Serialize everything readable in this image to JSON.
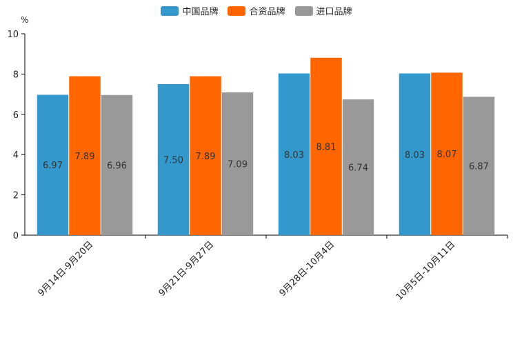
{
  "chart_data": {
    "type": "bar",
    "unit": "%",
    "categories": [
      "9月14日-9月20日",
      "9月21日-9月27日",
      "9月28日-10月4日",
      "10月5日-10月11日"
    ],
    "series": [
      {
        "name": "中国品牌",
        "color": "#3399cc",
        "values": [
          6.97,
          7.5,
          8.03,
          8.03
        ],
        "labels": [
          "6.97",
          "7.50",
          "8.03",
          "8.03"
        ]
      },
      {
        "name": "合资品牌",
        "color": "#ff6600",
        "values": [
          7.89,
          7.89,
          8.81,
          8.07
        ],
        "labels": [
          "7.89",
          "7.89",
          "8.81",
          "8.07"
        ]
      },
      {
        "name": "进口品牌",
        "color": "#999999",
        "values": [
          6.96,
          7.09,
          6.74,
          6.87
        ],
        "labels": [
          "6.96",
          "7.09",
          "6.74",
          "6.87"
        ]
      }
    ],
    "ylim": [
      0,
      10
    ],
    "yticks": [
      "0",
      "2",
      "4",
      "6",
      "8",
      "10"
    ],
    "legend_position": "top-center"
  }
}
